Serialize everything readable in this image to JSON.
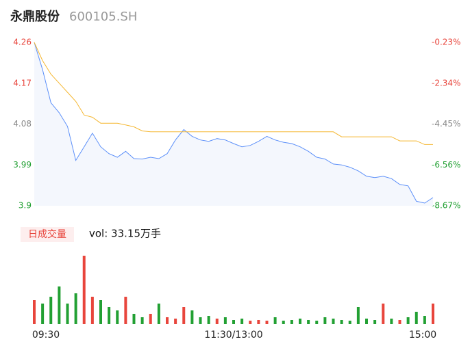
{
  "chart_data": {
    "type": "line",
    "title": "永鼎股份",
    "code": "600105.SH",
    "categories": [
      "09:30",
      null,
      null,
      null,
      null,
      null,
      null,
      null,
      null,
      null,
      null,
      null,
      null,
      null,
      null,
      null,
      null,
      null,
      null,
      null,
      null,
      null,
      null,
      null,
      "11:30/13:00",
      null,
      null,
      null,
      null,
      null,
      null,
      null,
      null,
      null,
      null,
      null,
      null,
      null,
      null,
      null,
      null,
      null,
      null,
      null,
      null,
      null,
      null,
      null,
      "15:00"
    ],
    "series": [
      {
        "color": "#5b8ff9",
        "values": [
          4.26,
          4.2,
          4.127,
          4.105,
          4.075,
          4.0,
          4.03,
          4.06,
          4.03,
          4.015,
          4.007,
          4.02,
          4.004,
          4.003,
          4.007,
          4.004,
          4.015,
          4.045,
          4.068,
          4.053,
          4.045,
          4.042,
          4.048,
          4.045,
          4.037,
          4.03,
          4.033,
          4.042,
          4.053,
          4.045,
          4.04,
          4.037,
          4.03,
          4.02,
          4.007,
          4.003,
          3.992,
          3.99,
          3.985,
          3.977,
          3.965,
          3.962,
          3.965,
          3.96,
          3.947,
          3.944,
          3.91,
          3.906,
          3.918
        ]
      },
      {
        "color": "#f5b731",
        "values": [
          4.26,
          4.22,
          4.19,
          4.17,
          4.15,
          4.13,
          4.1,
          4.095,
          4.082,
          4.082,
          4.082,
          4.078,
          4.074,
          4.065,
          4.063,
          4.063,
          4.063,
          4.063,
          4.063,
          4.063,
          4.063,
          4.063,
          4.063,
          4.063,
          4.063,
          4.063,
          4.063,
          4.063,
          4.063,
          4.063,
          4.063,
          4.063,
          4.063,
          4.063,
          4.063,
          4.063,
          4.063,
          4.052,
          4.052,
          4.052,
          4.052,
          4.052,
          4.052,
          4.052,
          4.043,
          4.043,
          4.043,
          4.035,
          4.035
        ]
      }
    ],
    "ylim": [
      3.9,
      4.26
    ],
    "yticks": [
      4.26,
      4.17,
      4.08,
      3.99,
      3.9
    ],
    "ytick_colors": [
      "#e8453c",
      "#e8453c",
      "#888888",
      "#22a033",
      "#22a033"
    ],
    "y2lim": [
      -8.67,
      -0.23
    ],
    "y2ticks": [
      {
        "value": -0.23,
        "label": "-0.23%"
      },
      {
        "value": -2.34,
        "label": "-2.34%"
      },
      {
        "value": -4.45,
        "label": "-4.45%"
      },
      {
        "value": -6.56,
        "label": "-6.56%"
      },
      {
        "value": -8.67,
        "label": "-8.67%"
      }
    ],
    "volume": {
      "title": "日成交量",
      "summary": "vol: 33.15万手",
      "ylim": [
        0,
        110
      ],
      "values": [
        35,
        30,
        40,
        55,
        30,
        45,
        100,
        40,
        35,
        25,
        20,
        40,
        15,
        10,
        15,
        30,
        10,
        8,
        25,
        20,
        10,
        12,
        8,
        10,
        6,
        8,
        5,
        6,
        5,
        10,
        5,
        6,
        8,
        6,
        5,
        10,
        8,
        6,
        5,
        25,
        8,
        6,
        30,
        8,
        6,
        10,
        18,
        12,
        30
      ],
      "colors": [
        "#e8453c",
        "#22a033",
        "#22a033",
        "#22a033",
        "#22a033",
        "#22a033",
        "#e8453c",
        "#e8453c",
        "#22a033",
        "#22a033",
        "#22a033",
        "#e8453c",
        "#22a033",
        "#22a033",
        "#e8453c",
        "#22a033",
        "#e8453c",
        "#e8453c",
        "#e8453c",
        "#22a033",
        "#22a033",
        "#22a033",
        "#e8453c",
        "#22a033",
        "#22a033",
        "#22a033",
        "#e8453c",
        "#e8453c",
        "#e8453c",
        "#22a033",
        "#22a033",
        "#22a033",
        "#22a033",
        "#22a033",
        "#22a033",
        "#22a033",
        "#22a033",
        "#22a033",
        "#22a033",
        "#22a033",
        "#22a033",
        "#22a033",
        "#e8453c",
        "#22a033",
        "#e8453c",
        "#22a033",
        "#22a033",
        "#22a033",
        "#e8453c"
      ]
    }
  }
}
